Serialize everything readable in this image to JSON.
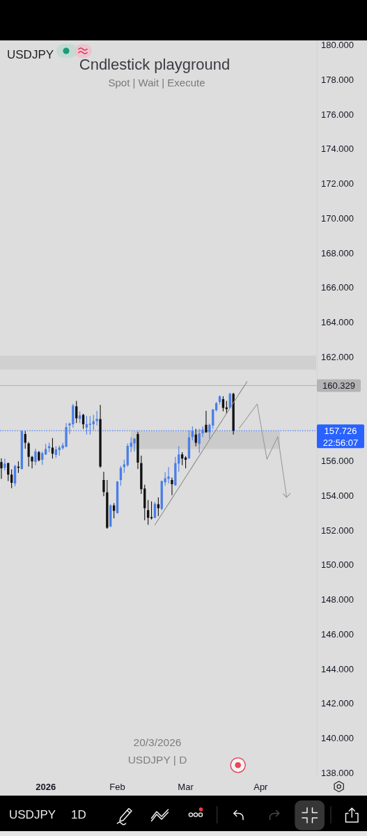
{
  "chart_data": {
    "type": "candlestick",
    "title": "Cndlestick playground",
    "subtitle": "Spot | Wait | Execute",
    "annotations": [
      "USDJPY",
      "20/3/2026",
      "USDJPY | D",
      "22:56:07",
      "USDJPY",
      "1D"
    ],
    "categories": [
      null,
      null,
      null,
      null,
      null,
      null,
      null,
      null,
      null,
      null,
      null,
      null,
      null,
      "2026",
      null,
      null,
      null,
      null,
      null,
      null,
      null,
      null,
      null,
      null,
      null,
      null,
      null,
      null,
      null,
      null,
      null,
      null,
      null,
      null,
      "Feb",
      null,
      null,
      null,
      null,
      null,
      null,
      null,
      null,
      null,
      null,
      null,
      null,
      null,
      null,
      null,
      null,
      null,
      null,
      null,
      "Mar",
      null,
      null,
      null,
      null,
      null,
      null,
      null,
      null,
      null,
      null,
      null,
      null,
      null,
      null,
      null,
      null,
      null,
      null,
      null,
      null,
      null,
      "Apr",
      null,
      null,
      null,
      null,
      null,
      null,
      null,
      null,
      null,
      null,
      null,
      null,
      null,
      null,
      null,
      null
    ],
    "ohlc": [
      [
        155.92,
        156.13,
        154.95,
        155.55
      ],
      [
        155.58,
        156.12,
        155.42,
        155.82
      ],
      [
        155.86,
        155.89,
        154.82,
        155.19
      ],
      [
        155.19,
        155.49,
        154.41,
        154.72
      ],
      [
        154.68,
        155.75,
        154.52,
        155.69
      ],
      [
        155.65,
        155.96,
        155.29,
        155.58
      ],
      [
        155.51,
        157.74,
        155.49,
        157.7
      ],
      [
        157.53,
        157.7,
        156.69,
        157.03
      ],
      [
        156.99,
        157.07,
        155.65,
        156.22
      ],
      [
        156.22,
        156.27,
        155.55,
        155.96
      ],
      [
        155.93,
        156.69,
        155.73,
        156.53
      ],
      [
        156.49,
        156.56,
        155.96,
        156.02
      ],
      [
        156.05,
        156.53,
        155.75,
        156.43
      ],
      [
        156.36,
        156.96,
        156.32,
        156.67
      ],
      [
        156.72,
        157.03,
        156.49,
        156.83
      ],
      [
        156.75,
        157.3,
        156.12,
        156.4
      ],
      [
        156.33,
        156.83,
        156.16,
        156.65
      ],
      [
        156.61,
        156.87,
        156.29,
        156.76
      ],
      [
        156.72,
        157.03,
        156.63,
        156.88
      ],
      [
        156.8,
        158.17,
        156.77,
        157.93
      ],
      [
        158.03,
        158.2,
        157.53,
        158.14
      ],
      [
        158.1,
        159.27,
        157.9,
        159.17
      ],
      [
        159.13,
        159.44,
        158.17,
        158.44
      ],
      [
        158.41,
        158.84,
        158.17,
        158.61
      ],
      [
        158.64,
        158.7,
        157.83,
        158.1
      ],
      [
        157.9,
        158.57,
        157.5,
        158.1
      ],
      [
        158.07,
        158.57,
        157.5,
        158.13
      ],
      [
        158.1,
        158.64,
        157.77,
        158.28
      ],
      [
        158.28,
        158.87,
        158.03,
        158.41
      ],
      [
        158.4,
        159.21,
        155.58,
        155.65
      ],
      [
        154.88,
        155.35,
        153.95,
        154.19
      ],
      [
        154.17,
        154.88,
        152.07,
        152.13
      ],
      [
        152.2,
        153.48,
        152.17,
        153.41
      ],
      [
        153.41,
        153.54,
        152.67,
        153.1
      ],
      [
        152.97,
        154.82,
        152.94,
        154.79
      ],
      [
        154.88,
        155.69,
        154.55,
        155.58
      ],
      [
        155.62,
        156.06,
        155.29,
        155.78
      ],
      [
        155.73,
        156.99,
        155.65,
        156.85
      ],
      [
        156.8,
        157.34,
        156.49,
        157.03
      ],
      [
        156.99,
        157.3,
        156.53,
        157.26
      ],
      [
        157.53,
        157.66,
        155.51,
        155.89
      ],
      [
        155.86,
        156.29,
        154.08,
        154.35
      ],
      [
        154.39,
        154.61,
        152.56,
        153.25
      ],
      [
        153.14,
        153.72,
        152.3,
        152.7
      ],
      [
        152.74,
        153.64,
        152.6,
        152.67
      ],
      [
        152.7,
        153.61,
        152.67,
        153.5
      ],
      [
        153.48,
        153.88,
        152.8,
        153.25
      ],
      [
        153.21,
        154.84,
        153.14,
        154.82
      ],
      [
        154.75,
        155.33,
        154.55,
        154.98
      ],
      [
        154.95,
        155.62,
        154.68,
        155.08
      ],
      [
        154.88,
        155.02,
        154.01,
        154.64
      ],
      [
        154.57,
        156.22,
        154.55,
        155.86
      ],
      [
        155.82,
        156.83,
        155.35,
        156.36
      ],
      [
        156.36,
        156.49,
        155.73,
        156.12
      ],
      [
        156.18,
        156.26,
        155.55,
        156.05
      ],
      [
        156.13,
        157.74,
        156.1,
        157.34
      ],
      [
        157.36,
        157.97,
        157.16,
        157.7
      ],
      [
        157.5,
        157.83,
        156.83,
        157.03
      ],
      [
        156.96,
        157.83,
        156.45,
        157.57
      ],
      [
        157.57,
        157.97,
        157.36,
        157.79
      ],
      [
        158.07,
        158.87,
        157.6,
        157.63
      ],
      [
        157.63,
        158.14,
        157.26,
        158.07
      ],
      [
        158.03,
        158.97,
        157.83,
        158.95
      ],
      [
        158.91,
        159.38,
        158.84,
        159.31
      ],
      [
        159.38,
        159.75,
        159.24,
        159.71
      ],
      [
        159.54,
        159.71,
        158.84,
        159.04
      ],
      [
        159.07,
        159.44,
        158.7,
        158.97
      ],
      [
        159.04,
        159.91,
        159.0,
        159.85
      ],
      [
        159.85,
        159.91,
        157.5,
        157.726
      ],
      null,
      null,
      null,
      null,
      null,
      null,
      null,
      null,
      null,
      null,
      null,
      null,
      null,
      null,
      null,
      null,
      null,
      null,
      null,
      null,
      null,
      null,
      null,
      null
    ],
    "colors": [
      "#111111",
      "#4a7ee8",
      "#111111",
      "#111111",
      "#4a7ee8",
      "#111111",
      "#4a7ee8",
      "#111111",
      "#111111",
      "#111111",
      "#4a7ee8",
      "#111111",
      "#4a7ee8",
      "#4a7ee8",
      "#4a7ee8",
      "#111111",
      "#4a7ee8",
      "#4a7ee8",
      "#4a7ee8",
      "#4a7ee8",
      "#4a7ee8",
      "#4a7ee8",
      "#111111",
      "#4a7ee8",
      "#111111",
      "#4a7ee8",
      "#4a7ee8",
      "#4a7ee8",
      "#4a7ee8",
      "#111111",
      "#111111",
      "#111111",
      "#4a7ee8",
      "#111111",
      "#4a7ee8",
      "#4a7ee8",
      "#4a7ee8",
      "#4a7ee8",
      "#4a7ee8",
      "#4a7ee8",
      "#111111",
      "#111111",
      "#111111",
      "#111111",
      "#111111",
      "#4a7ee8",
      "#111111",
      "#4a7ee8",
      "#4a7ee8",
      "#4a7ee8",
      "#111111",
      "#4a7ee8",
      "#4a7ee8",
      "#111111",
      "#111111",
      "#4a7ee8",
      "#4a7ee8",
      "#111111",
      "#4a7ee8",
      "#4a7ee8",
      "#111111",
      "#4a7ee8",
      "#4a7ee8",
      "#4a7ee8",
      "#4a7ee8",
      "#111111",
      "#111111",
      "#4a7ee8",
      "#111111",
      null,
      null,
      null,
      null,
      null,
      null,
      null,
      null,
      null,
      null,
      null,
      null,
      null,
      null,
      null,
      null,
      null,
      null,
      null,
      null,
      null,
      null,
      null,
      null
    ],
    "series": [
      {
        "type": "line",
        "color": "#8e8e8e",
        "values": [
          null,
          null,
          null,
          null,
          null,
          null,
          null,
          null,
          null,
          null,
          null,
          null,
          null,
          null,
          null,
          null,
          null,
          null,
          null,
          null,
          null,
          null,
          null,
          null,
          null,
          null,
          null,
          null,
          null,
          null,
          null,
          null,
          null,
          null,
          null,
          null,
          null,
          null,
          null,
          null,
          null,
          null,
          null,
          null,
          null,
          152.29,
          152.6,
          152.9,
          153.21,
          153.51,
          153.82,
          154.13,
          154.43,
          154.74,
          155.05,
          155.35,
          155.66,
          155.97,
          156.27,
          156.58,
          156.89,
          157.19,
          157.5,
          157.8,
          158.11,
          158.42,
          158.72,
          159.03,
          159.34,
          159.64,
          159.95,
          160.25,
          160.56,
          null,
          null,
          null,
          null,
          null,
          null,
          null,
          null,
          null,
          null,
          null,
          null,
          null,
          null,
          null,
          null,
          null,
          null,
          null,
          null
        ]
      }
    ],
    "ylim": [
      137.84,
      180.24
    ],
    "yticks": [
      {
        "value": 138,
        "label": "138.000"
      },
      {
        "value": 140,
        "label": "140.000"
      },
      {
        "value": 142,
        "label": "142.000"
      },
      {
        "value": 144,
        "label": "144.000"
      },
      {
        "value": 146,
        "label": "146.000"
      },
      {
        "value": 148,
        "label": "148.000"
      },
      {
        "value": 150,
        "label": "150.000"
      },
      {
        "value": 152,
        "label": "152.000"
      },
      {
        "value": 154,
        "label": "154.000"
      },
      {
        "value": 156,
        "label": "156.000"
      },
      {
        "value": 162,
        "label": "162.000"
      },
      {
        "value": 164,
        "label": "164.000"
      },
      {
        "value": 166,
        "label": "166.000"
      },
      {
        "value": 168,
        "label": "168.000"
      },
      {
        "value": 170,
        "label": "170.000"
      },
      {
        "value": 172,
        "label": "172.000"
      },
      {
        "value": 174,
        "label": "174.000"
      },
      {
        "value": 176,
        "label": "176.000"
      },
      {
        "value": 178,
        "label": "178.000"
      },
      {
        "value": 180,
        "label": "180.000"
      }
    ],
    "bands": [
      {
        "axis": "y",
        "from": 161.25,
        "to": 162.05,
        "color": "#d0d0d0"
      },
      {
        "axis": "y",
        "from": 156.67,
        "to": 157.71,
        "color": "#cbcbcb"
      }
    ],
    "ref_lines": [
      {
        "axis": "y",
        "value": 160.329,
        "label": "160.329",
        "color": "#b3b3b3"
      },
      {
        "axis": "y",
        "value": 157.726,
        "label": "157.726",
        "color": "#2962ff",
        "line_style": "dotted"
      }
    ]
  }
}
